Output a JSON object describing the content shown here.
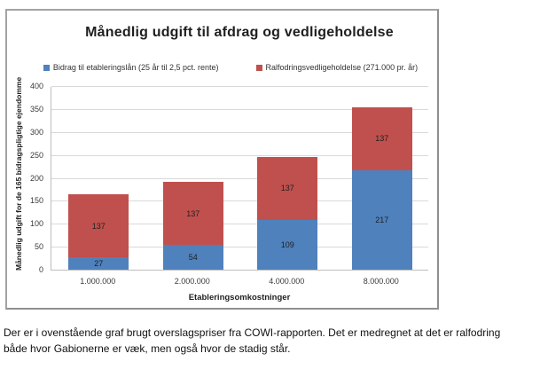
{
  "chart_data": {
    "type": "bar",
    "stacked": true,
    "title": "Månedlig udgift til afdrag og vedligeholdelse",
    "xlabel": "Etableringsomkostninger",
    "ylabel": "Månedlig udgift for de 165 bidragspligtige ejendomme",
    "categories": [
      "1.000.000",
      "2.000.000",
      "4.000.000",
      "8.000.000"
    ],
    "series": [
      {
        "name": "Bidrag til etableringslån (25 år til 2,5 pct. rente)",
        "color": "#4f81bd",
        "values": [
          27,
          54,
          109,
          217
        ]
      },
      {
        "name": "Ralfodringsvedligeholdelse (271.000 pr. år)",
        "color": "#c0504d",
        "values": [
          137,
          137,
          137,
          137
        ]
      }
    ],
    "stack_totals": [
      164,
      191,
      246,
      354
    ],
    "ylim": [
      0,
      400
    ],
    "yticks": [
      0,
      50,
      100,
      150,
      200,
      250,
      300,
      350,
      400
    ],
    "grid": true,
    "legend_position": "top",
    "data_labels": true,
    "colors": {
      "gridline": "#d9d9d9",
      "axis": "#bdbdbd",
      "chart_border": "#a3a3a3"
    }
  },
  "caption": {
    "text": "Der er i ovenstående graf brugt overslagspriser fra COWI-rapporten. Det er medregnet at det er ralfodring både hvor Gabionerne er væk, men også hvor de stadig står."
  }
}
